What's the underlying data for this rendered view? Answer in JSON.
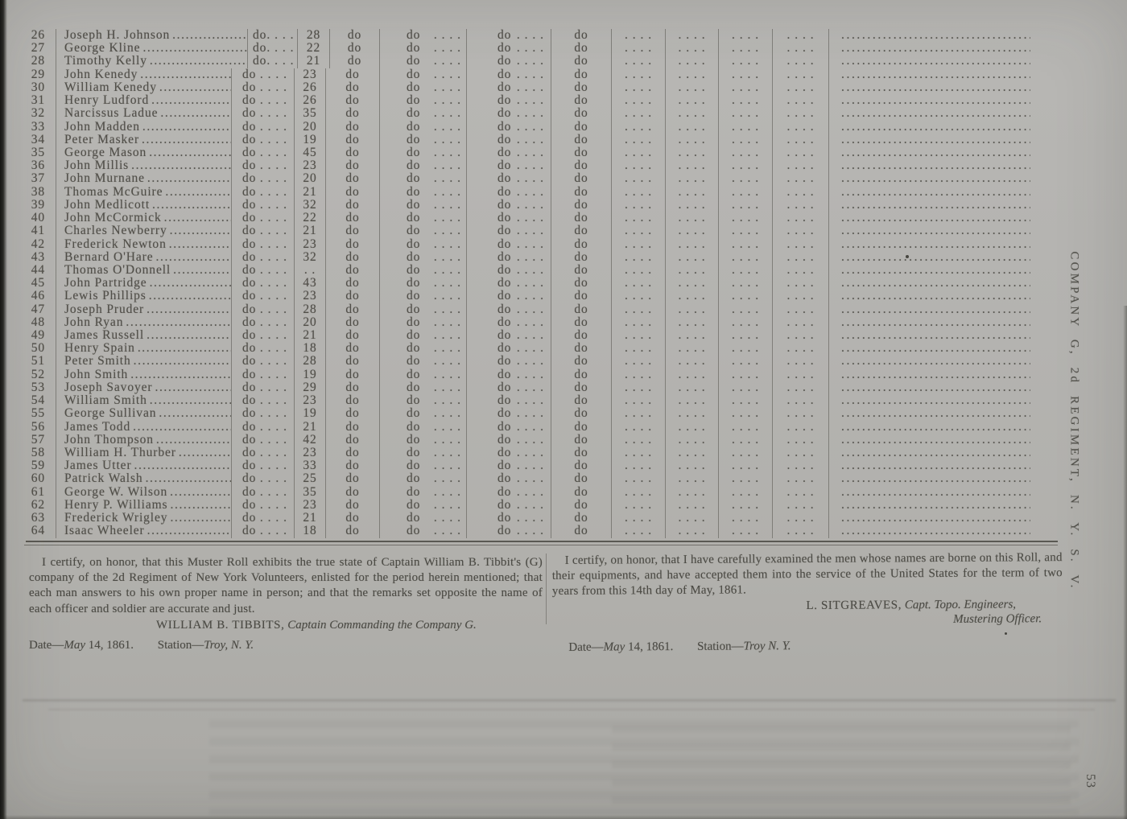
{
  "document": {
    "side_label": "COMPANY G, 2d REGIMENT, N. Y. S. V.",
    "page_number": "53"
  },
  "table": {
    "ditto": "do",
    "dot_entry": ". . . .",
    "rows": [
      {
        "no": "26",
        "name": "Joseph H. Johnson",
        "age": "28"
      },
      {
        "no": "27",
        "name": "George Kline",
        "age": "22"
      },
      {
        "no": "28",
        "name": "Timothy Kelly",
        "age": "21"
      },
      {
        "no": "29",
        "name": "John Kenedy",
        "age": "23"
      },
      {
        "no": "30",
        "name": "William Kenedy",
        "age": "26"
      },
      {
        "no": "31",
        "name": "Henry Ludford",
        "age": "26"
      },
      {
        "no": "32",
        "name": "Narcissus Ladue",
        "age": "35"
      },
      {
        "no": "33",
        "name": "John Madden",
        "age": "20"
      },
      {
        "no": "34",
        "name": "Peter Masker",
        "age": "19"
      },
      {
        "no": "35",
        "name": "George Mason",
        "age": "45"
      },
      {
        "no": "36",
        "name": "John Millis",
        "age": "23"
      },
      {
        "no": "37",
        "name": "John Murnane",
        "age": "20"
      },
      {
        "no": "38",
        "name": "Thomas McGuire",
        "age": "21"
      },
      {
        "no": "39",
        "name": "John Medlicott",
        "age": "32"
      },
      {
        "no": "40",
        "name": "John McCormick",
        "age": "22"
      },
      {
        "no": "41",
        "name": "Charles Newberry",
        "age": "21"
      },
      {
        "no": "42",
        "name": "Frederick Newton",
        "age": "23"
      },
      {
        "no": "43",
        "name": "Bernard O'Hare",
        "age": "32"
      },
      {
        "no": "44",
        "name": "Thomas O'Donnell",
        "age": ". ."
      },
      {
        "no": "45",
        "name": "John Partridge",
        "age": "43"
      },
      {
        "no": "46",
        "name": "Lewis Phillips",
        "age": "23"
      },
      {
        "no": "47",
        "name": "Joseph Pruder",
        "age": "28"
      },
      {
        "no": "48",
        "name": "John Ryan",
        "age": "20"
      },
      {
        "no": "49",
        "name": "James Russell",
        "age": "21"
      },
      {
        "no": "50",
        "name": "Henry Spain",
        "age": "18"
      },
      {
        "no": "51",
        "name": "Peter Smith",
        "age": "28"
      },
      {
        "no": "52",
        "name": "John Smith",
        "age": "19"
      },
      {
        "no": "53",
        "name": "Joseph Savoyer",
        "age": "29"
      },
      {
        "no": "54",
        "name": "William Smith",
        "age": "23"
      },
      {
        "no": "55",
        "name": "George Sullivan",
        "age": "19"
      },
      {
        "no": "56",
        "name": "James Todd",
        "age": "21"
      },
      {
        "no": "57",
        "name": "John Thompson",
        "age": "42"
      },
      {
        "no": "58",
        "name": "William H. Thurber",
        "age": "23"
      },
      {
        "no": "59",
        "name": "James Utter",
        "age": "33"
      },
      {
        "no": "60",
        "name": "Patrick Walsh",
        "age": "25"
      },
      {
        "no": "61",
        "name": "George W. Wilson",
        "age": "35"
      },
      {
        "no": "62",
        "name": "Henry P. Williams",
        "age": "23"
      },
      {
        "no": "63",
        "name": "Frederick Wrigley",
        "age": "21"
      },
      {
        "no": "64",
        "name": "Isaac Wheeler",
        "age": "18"
      }
    ]
  },
  "certification_left": {
    "body": "I certify, on honor, that this Muster Roll exhibits the true state of Captain William B. Tibbit's (G) company of the 2d Regiment of New York Volunteers, enlisted for the period herein mentioned; that each man answers to his own proper name in person; and that the remarks set opposite the name of each officer and soldier are accurate and just.",
    "signature_name": "WILLIAM B. TIBBITS,",
    "signature_title": "Captain Commanding the Company G.",
    "date_label": "Date—",
    "date_month": "May",
    "date_rest": "14, 1861.",
    "station_label": "Station—",
    "station_value": "Troy, N. Y."
  },
  "certification_right": {
    "body": "I certify, on honor, that I have carefully examined the men whose names are borne on this Roll, and their equipments, and have accepted them into the service of the United States for the term of two years from this 14th day of May, 1861.",
    "signature_name": "L. SITGREAVES,",
    "signature_title": "Capt. Topo. Engineers,",
    "signature_title2": "Mustering Officer.",
    "date_label": "Date—",
    "date_month": "May",
    "date_rest": "14, 1861.",
    "station_label": "Station—",
    "station_value": "Troy N. Y."
  }
}
